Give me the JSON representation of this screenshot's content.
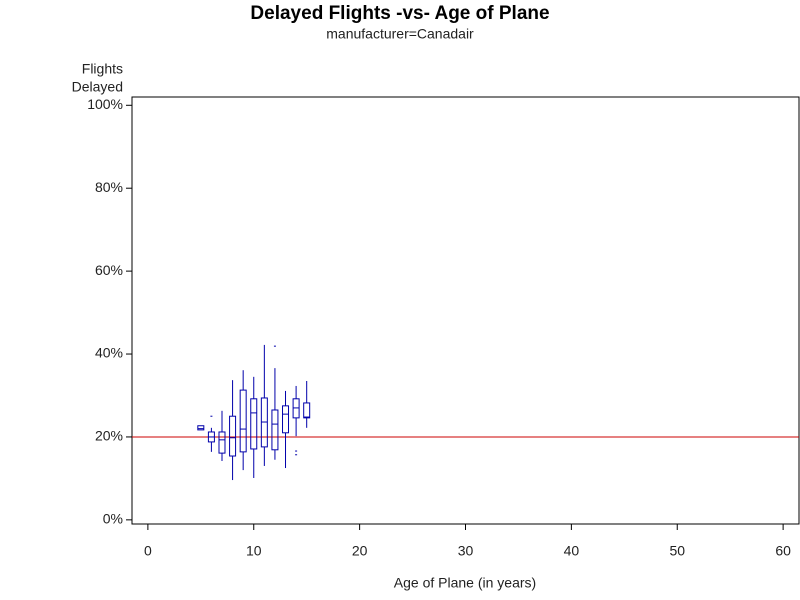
{
  "chart_data": {
    "type": "box",
    "title": "Delayed Flights -vs- Age of Plane",
    "subtitle": "manufacturer=Canadair",
    "ylabel": [
      "Flights",
      "Delayed"
    ],
    "xlabel": "Age of Plane (in years)",
    "color": "#0000aa",
    "x": [
      5,
      6,
      7,
      8,
      9,
      10,
      11,
      12,
      13,
      14,
      15
    ],
    "whislo": [
      21.7,
      16.4,
      14.2,
      9.6,
      12,
      10.1,
      13,
      14.5,
      12.5,
      20.2,
      22.2
    ],
    "q1": [
      21.7,
      18.8,
      16.1,
      15.4,
      16.4,
      17.1,
      17.6,
      16.9,
      21,
      24.6,
      24.6
    ],
    "med": [
      22,
      20,
      19.3,
      19.8,
      21.9,
      25.8,
      23.6,
      23.1,
      25.5,
      27,
      24.8
    ],
    "q3": [
      22.7,
      21.2,
      21.2,
      25,
      31.3,
      29.2,
      29.4,
      26.5,
      27.5,
      29.2,
      28.2
    ],
    "whishi": [
      22.7,
      22.2,
      26.3,
      33.7,
      36.1,
      34.5,
      42.2,
      36.6,
      31.1,
      32.3,
      33.5
    ],
    "outliers": [
      [],
      [
        25
      ],
      [],
      [],
      [],
      [],
      [],
      [
        41.9
      ],
      [],
      [
        16.6,
        15.7
      ],
      []
    ],
    "reference_line": {
      "value": 20,
      "color": "#cc0000"
    },
    "xlim": [
      -1.5,
      61.5
    ],
    "ylim": [
      -1,
      102
    ],
    "xticks": [
      0,
      10,
      20,
      30,
      40,
      50,
      60
    ],
    "yticks": [
      {
        "value": 0,
        "label": "0%"
      },
      {
        "value": 20,
        "label": "20%"
      },
      {
        "value": 40,
        "label": "40%"
      },
      {
        "value": 60,
        "label": "60%"
      },
      {
        "value": 80,
        "label": "80%"
      },
      {
        "value": 100,
        "label": "100%"
      }
    ]
  }
}
